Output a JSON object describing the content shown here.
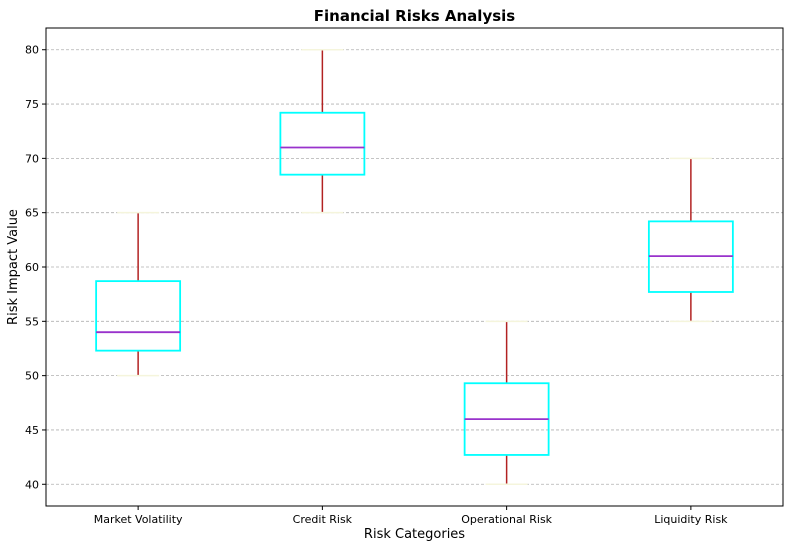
{
  "chart_data": {
    "type": "box",
    "title": "Financial Risks Analysis",
    "xlabel": "Risk Categories",
    "ylabel": "Risk Impact Value",
    "ylim": [
      38,
      82
    ],
    "yticks": [
      40,
      45,
      50,
      55,
      60,
      65,
      70,
      75,
      80
    ],
    "grid": "y-dashed",
    "categories": [
      "Market Volatility",
      "Credit Risk",
      "Operational Risk",
      "Liquidity Risk"
    ],
    "boxes": [
      {
        "category": "Market Volatility",
        "min": 50,
        "q1": 52.3,
        "median": 54,
        "q3": 58.7,
        "max": 65
      },
      {
        "category": "Credit Risk",
        "min": 65,
        "q1": 68.5,
        "median": 71,
        "q3": 74.2,
        "max": 80
      },
      {
        "category": "Operational Risk",
        "min": 40,
        "q1": 42.7,
        "median": 46,
        "q3": 49.3,
        "max": 55
      },
      {
        "category": "Liquidity Risk",
        "min": 55,
        "q1": 57.7,
        "median": 61,
        "q3": 64.2,
        "max": 70
      }
    ],
    "colors": {
      "box": "#00ffff",
      "median": "#9932cc",
      "whisker": "#b22222",
      "cap": "#f5f5dc",
      "grid": "#b0b0b0"
    }
  }
}
